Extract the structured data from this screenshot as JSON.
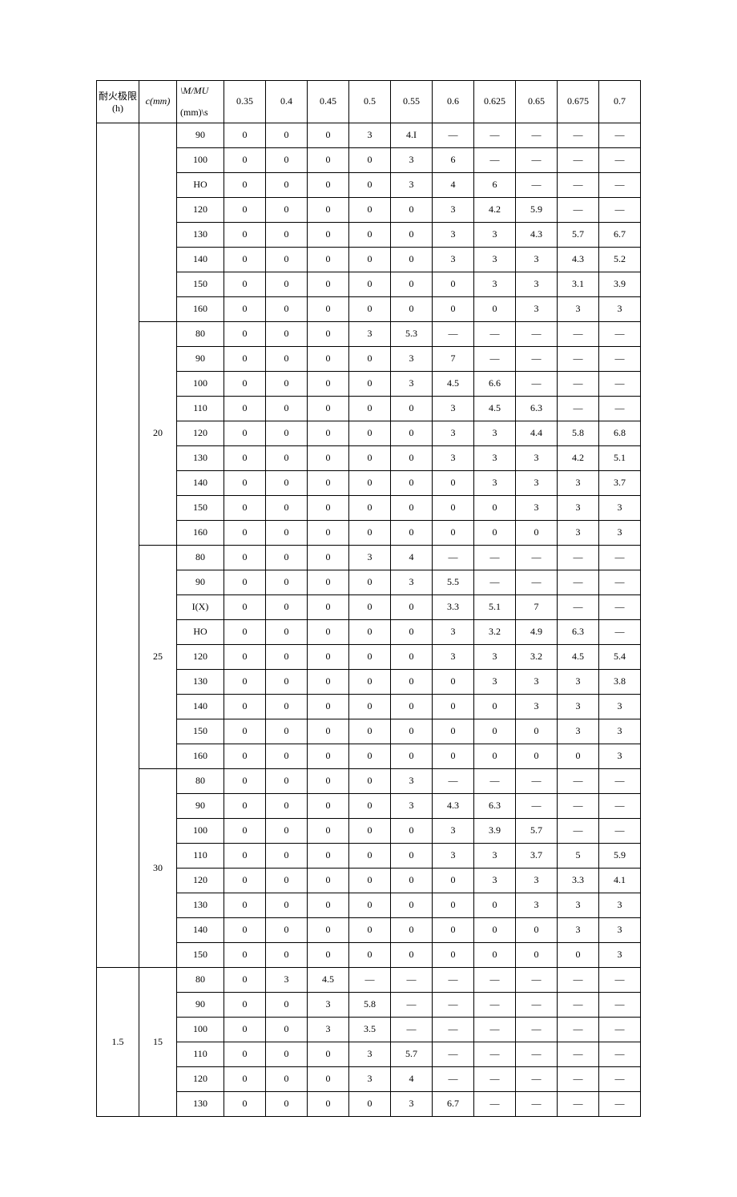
{
  "type": "table",
  "columns": {
    "fire_limit_label_top": "耐火极限",
    "fire_limit_label_bot": "(h)",
    "c_label": "c(mm)",
    "mmu_label_top": "\\M/MU",
    "mmu_label_bot": "(mm)\\s",
    "ratio_headers": [
      "0.35",
      "0.4",
      "0.45",
      "0.5",
      "0.55",
      "0.6",
      "0.625",
      "0.65",
      "0.675",
      "0.7"
    ]
  },
  "groups": [
    {
      "fire": "",
      "blocks": [
        {
          "c": "",
          "rows": [
            {
              "mm": "90",
              "v": [
                "0",
                "0",
                "0",
                "3",
                "4.I",
                "—",
                "—",
                "—",
                "—",
                "—"
              ]
            },
            {
              "mm": "100",
              "v": [
                "0",
                "0",
                "0",
                "0",
                "3",
                "6",
                "—",
                "—",
                "—",
                "—"
              ]
            },
            {
              "mm": "HO",
              "v": [
                "0",
                "0",
                "0",
                "0",
                "3",
                "4",
                "6",
                "—",
                "—",
                "—"
              ]
            },
            {
              "mm": "120",
              "v": [
                "0",
                "0",
                "0",
                "0",
                "0",
                "3",
                "4.2",
                "5.9",
                "—",
                "—"
              ]
            },
            {
              "mm": "130",
              "v": [
                "0",
                "0",
                "0",
                "0",
                "0",
                "3",
                "3",
                "4.3",
                "5.7",
                "6.7"
              ]
            },
            {
              "mm": "140",
              "v": [
                "0",
                "0",
                "0",
                "0",
                "0",
                "3",
                "3",
                "3",
                "4.3",
                "5.2"
              ]
            },
            {
              "mm": "150",
              "v": [
                "0",
                "0",
                "0",
                "0",
                "0",
                "0",
                "3",
                "3",
                "3.1",
                "3.9"
              ]
            },
            {
              "mm": "160",
              "v": [
                "0",
                "0",
                "0",
                "0",
                "0",
                "0",
                "0",
                "3",
                "3",
                "3"
              ]
            }
          ]
        },
        {
          "c": "20",
          "rows": [
            {
              "mm": "80",
              "v": [
                "0",
                "0",
                "0",
                "3",
                "5.3",
                "—",
                "—",
                "—",
                "—",
                "—"
              ]
            },
            {
              "mm": "90",
              "v": [
                "0",
                "0",
                "0",
                "0",
                "3",
                "7",
                "—",
                "—",
                "—",
                "—"
              ]
            },
            {
              "mm": "100",
              "v": [
                "0",
                "0",
                "0",
                "0",
                "3",
                "4.5",
                "6.6",
                "—",
                "—",
                "—"
              ]
            },
            {
              "mm": "110",
              "v": [
                "0",
                "0",
                "0",
                "0",
                "0",
                "3",
                "4.5",
                "6.3",
                "—",
                "—"
              ]
            },
            {
              "mm": "120",
              "v": [
                "0",
                "0",
                "0",
                "0",
                "0",
                "3",
                "3",
                "4.4",
                "5.8",
                "6.8"
              ]
            },
            {
              "mm": "130",
              "v": [
                "0",
                "0",
                "0",
                "0",
                "0",
                "3",
                "3",
                "3",
                "4.2",
                "5.1"
              ]
            },
            {
              "mm": "140",
              "v": [
                "0",
                "0",
                "0",
                "0",
                "0",
                "0",
                "3",
                "3",
                "3",
                "3.7"
              ]
            },
            {
              "mm": "150",
              "v": [
                "0",
                "0",
                "0",
                "0",
                "0",
                "0",
                "0",
                "3",
                "3",
                "3"
              ]
            },
            {
              "mm": "160",
              "v": [
                "0",
                "0",
                "0",
                "0",
                "0",
                "0",
                "0",
                "0",
                "3",
                "3"
              ]
            }
          ]
        },
        {
          "c": "25",
          "rows": [
            {
              "mm": "80",
              "v": [
                "0",
                "0",
                "0",
                "3",
                "4",
                "—",
                "—",
                "—",
                "—",
                "—"
              ]
            },
            {
              "mm": "90",
              "v": [
                "0",
                "0",
                "0",
                "0",
                "3",
                "5.5",
                "—",
                "—",
                "—",
                "—"
              ]
            },
            {
              "mm": "I(X)",
              "v": [
                "0",
                "0",
                "0",
                "0",
                "0",
                "3.3",
                "5.1",
                "7",
                "—",
                "—"
              ]
            },
            {
              "mm": "HO",
              "v": [
                "0",
                "0",
                "0",
                "0",
                "0",
                "3",
                "3.2",
                "4.9",
                "6.3",
                "—"
              ]
            },
            {
              "mm": "120",
              "v": [
                "0",
                "0",
                "0",
                "0",
                "0",
                "3",
                "3",
                "3.2",
                "4.5",
                "5.4"
              ]
            },
            {
              "mm": "130",
              "v": [
                "0",
                "0",
                "0",
                "0",
                "0",
                "0",
                "3",
                "3",
                "3",
                "3.8"
              ]
            },
            {
              "mm": "140",
              "v": [
                "0",
                "0",
                "0",
                "0",
                "0",
                "0",
                "0",
                "3",
                "3",
                "3"
              ]
            },
            {
              "mm": "150",
              "v": [
                "0",
                "0",
                "0",
                "0",
                "0",
                "0",
                "0",
                "0",
                "3",
                "3"
              ]
            },
            {
              "mm": "160",
              "v": [
                "0",
                "0",
                "0",
                "0",
                "0",
                "0",
                "0",
                "0",
                "0",
                "3"
              ]
            }
          ]
        },
        {
          "c": "30",
          "rows": [
            {
              "mm": "80",
              "v": [
                "0",
                "0",
                "0",
                "0",
                "3",
                "—",
                "—",
                "—",
                "—",
                "—"
              ]
            },
            {
              "mm": "90",
              "v": [
                "0",
                "0",
                "0",
                "0",
                "3",
                "4.3",
                "6.3",
                "—",
                "—",
                "—"
              ]
            },
            {
              "mm": "100",
              "v": [
                "0",
                "0",
                "0",
                "0",
                "0",
                "3",
                "3.9",
                "5.7",
                "—",
                "—"
              ]
            },
            {
              "mm": "110",
              "v": [
                "0",
                "0",
                "0",
                "0",
                "0",
                "3",
                "3",
                "3.7",
                "5",
                "5.9"
              ]
            },
            {
              "mm": "120",
              "v": [
                "0",
                "0",
                "0",
                "0",
                "0",
                "0",
                "3",
                "3",
                "3.3",
                "4.1"
              ]
            },
            {
              "mm": "130",
              "v": [
                "0",
                "0",
                "0",
                "0",
                "0",
                "0",
                "0",
                "3",
                "3",
                "3"
              ]
            },
            {
              "mm": "140",
              "v": [
                "0",
                "0",
                "0",
                "0",
                "0",
                "0",
                "0",
                "0",
                "3",
                "3"
              ]
            },
            {
              "mm": "150",
              "v": [
                "0",
                "0",
                "0",
                "0",
                "0",
                "0",
                "0",
                "0",
                "0",
                "3"
              ]
            }
          ]
        }
      ]
    },
    {
      "fire": "1.5",
      "blocks": [
        {
          "c": "15",
          "rows": [
            {
              "mm": "80",
              "v": [
                "0",
                "3",
                "4.5",
                "—",
                "—",
                "—",
                "—",
                "—",
                "—",
                "—"
              ]
            },
            {
              "mm": "90",
              "v": [
                "0",
                "0",
                "3",
                "5.8",
                "—",
                "—",
                "—",
                "—",
                "—",
                "—"
              ]
            },
            {
              "mm": "100",
              "v": [
                "0",
                "0",
                "3",
                "3.5",
                "—",
                "—",
                "—",
                "—",
                "—",
                "—"
              ]
            },
            {
              "mm": "110",
              "v": [
                "0",
                "0",
                "0",
                "3",
                "5.7",
                "—",
                "—",
                "—",
                "—",
                "—"
              ]
            },
            {
              "mm": "120",
              "v": [
                "0",
                "0",
                "0",
                "3",
                "4",
                "—",
                "—",
                "—",
                "—",
                "—"
              ]
            },
            {
              "mm": "130",
              "v": [
                "0",
                "0",
                "0",
                "0",
                "3",
                "6.7",
                "—",
                "—",
                "—",
                "—"
              ]
            }
          ]
        }
      ]
    }
  ]
}
